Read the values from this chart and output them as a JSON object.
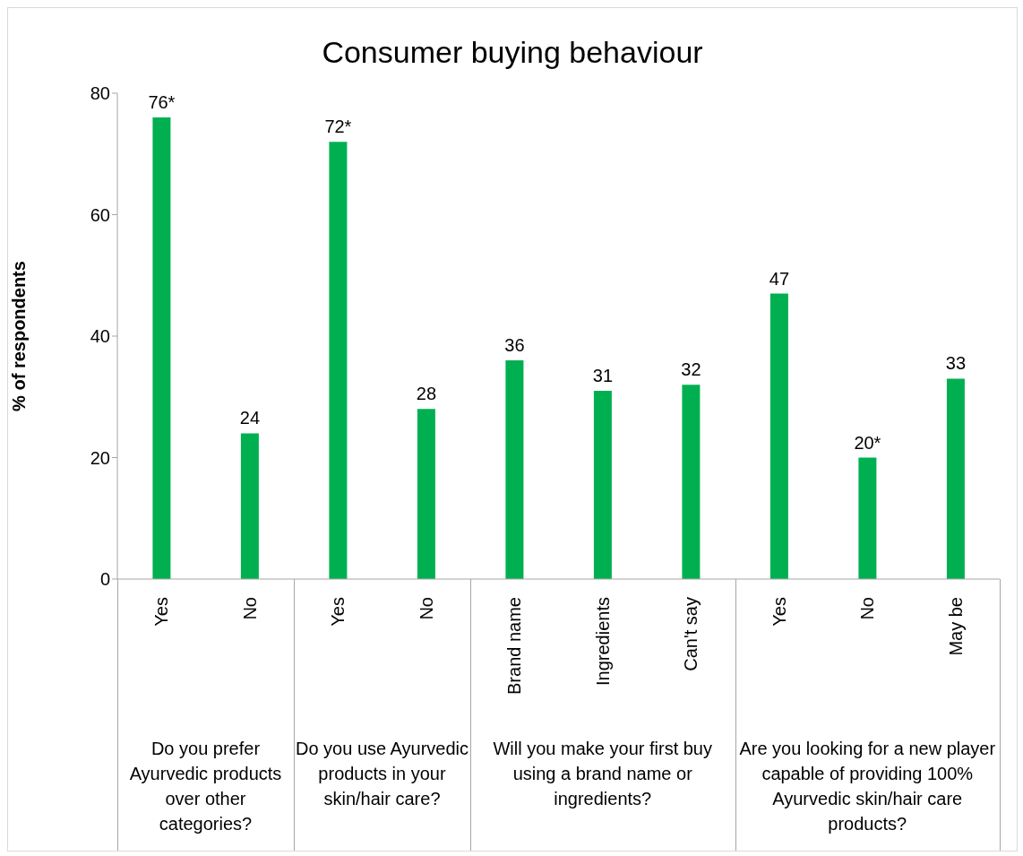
{
  "chart_data": {
    "type": "bar",
    "title": "Consumer buying behaviour",
    "ylabel": "% of respondents",
    "categories": [
      "Yes",
      "No",
      "Yes",
      "No",
      "Brand name",
      "Ingredients",
      "Can't say",
      "Yes",
      "No",
      "May be"
    ],
    "values": [
      76,
      24,
      72,
      28,
      36,
      31,
      32,
      47,
      20,
      33
    ],
    "value_labels": [
      "76*",
      "24",
      "72*",
      "28",
      "36",
      "31",
      "32",
      "47",
      "20*",
      "33"
    ],
    "color": "#00b050",
    "ylim": [
      0,
      80
    ],
    "yticks": [
      0,
      20,
      40,
      60,
      80
    ],
    "grid": false,
    "legend": false,
    "annotations": [
      "Do you prefer Ayurvedic products over other categories?",
      "Do you use Ayurvedic products in your skin/hair care?",
      "Will you make your first buy using a brand name or ingredients?",
      "Are you looking for a new player capable of providing 100% Ayurvedic skin/hair care products?"
    ]
  }
}
